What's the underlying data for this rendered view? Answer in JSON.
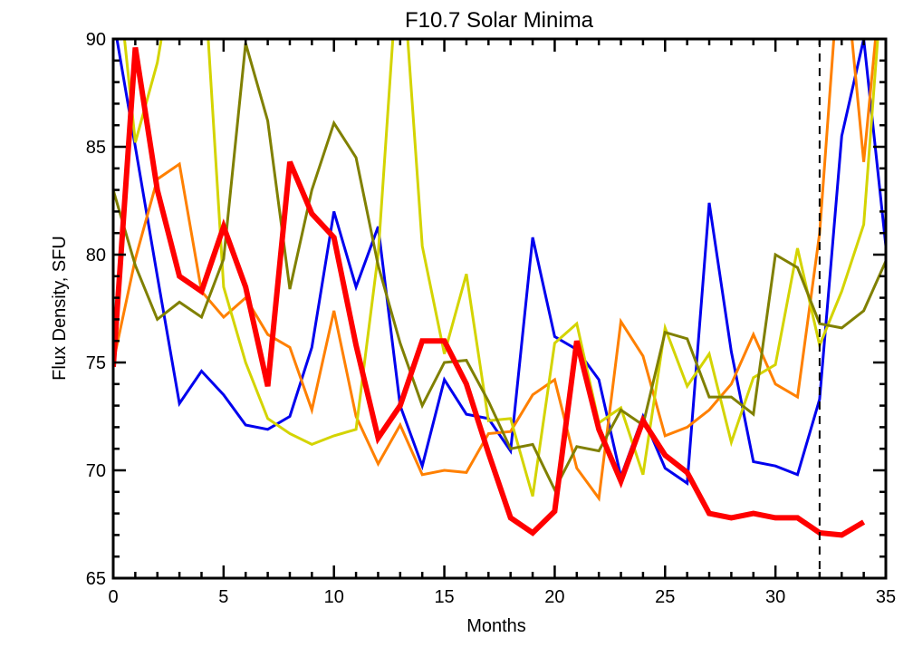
{
  "chart_data": {
    "type": "line",
    "title": "F10.7 Solar Minima",
    "xlabel": "Months",
    "ylabel": "Flux Density, SFU",
    "xlim": [
      0,
      35
    ],
    "ylim": [
      65,
      90
    ],
    "xticks": [
      0,
      5,
      10,
      15,
      20,
      25,
      30,
      35
    ],
    "yticks": [
      65,
      70,
      75,
      80,
      85,
      90
    ],
    "grid": false,
    "vline": {
      "x": 32,
      "style": "dashed",
      "color": "#000000"
    },
    "series": [
      {
        "name": "blue",
        "color": "#0000ee",
        "width": 3,
        "x": [
          0,
          1,
          2,
          3,
          4,
          5,
          6,
          7,
          8,
          9,
          10,
          11,
          12,
          13,
          14,
          15,
          16,
          17,
          18,
          19,
          20,
          21,
          22,
          23,
          24,
          25,
          26,
          27,
          28,
          29,
          30,
          31,
          32,
          33,
          34,
          35
        ],
        "values": [
          91,
          85,
          79,
          73.1,
          74.6,
          73.5,
          72.1,
          71.9,
          72.5,
          75.7,
          82,
          78.5,
          81.3,
          73,
          70.2,
          74.2,
          72.6,
          72.4,
          70.9,
          80.8,
          76.2,
          75.6,
          74.2,
          69.7,
          72.5,
          70.1,
          69.4,
          82.4,
          75.5,
          70.4,
          70.2,
          69.8,
          73.3,
          85.5,
          90,
          80.4
        ]
      },
      {
        "name": "orange",
        "color": "#ff8000",
        "width": 3,
        "x": [
          0,
          1,
          2,
          3,
          4,
          5,
          6,
          7,
          8,
          9,
          10,
          11,
          12,
          13,
          14,
          15,
          16,
          17,
          18,
          19,
          20,
          21,
          22,
          23,
          24,
          25,
          26,
          27,
          28,
          29,
          30,
          31,
          32,
          33,
          34,
          35
        ],
        "values": [
          75,
          79.8,
          83.5,
          84.2,
          78.3,
          77.1,
          78,
          76.3,
          75.7,
          72.8,
          77.4,
          72.5,
          70.3,
          72.1,
          69.8,
          70,
          69.9,
          71.7,
          71.8,
          73.5,
          74.2,
          70.1,
          68.7,
          76.9,
          75.3,
          71.6,
          72,
          72.8,
          74,
          76.3,
          74,
          73.4,
          81,
          95,
          84.3,
          95
        ]
      },
      {
        "name": "yellow",
        "color": "#d4d400",
        "width": 3,
        "x": [
          0,
          1,
          2,
          3,
          4,
          5,
          6,
          7,
          8,
          9,
          10,
          11,
          12,
          13,
          14,
          15,
          16,
          17,
          18,
          19,
          20,
          21,
          22,
          23,
          24,
          25,
          26,
          27,
          28,
          29,
          30,
          31,
          32,
          33,
          34,
          35
        ],
        "values": [
          95,
          85.2,
          88.9,
          95,
          95,
          78.5,
          75,
          72.4,
          71.7,
          71.2,
          71.6,
          71.9,
          80,
          95,
          80.4,
          75.4,
          79.1,
          72.3,
          72.4,
          68.8,
          75.9,
          76.8,
          72.2,
          72.9,
          69.8,
          76.6,
          73.9,
          75.4,
          71.3,
          74.3,
          74.9,
          80.3,
          75.8,
          78.3,
          81.4,
          95
        ]
      },
      {
        "name": "olive",
        "color": "#808000",
        "width": 3,
        "x": [
          0,
          1,
          2,
          3,
          4,
          5,
          6,
          7,
          8,
          9,
          10,
          11,
          12,
          13,
          14,
          15,
          16,
          17,
          18,
          19,
          20,
          21,
          22,
          23,
          24,
          25,
          26,
          27,
          28,
          29,
          30,
          31,
          32,
          33,
          34,
          35
        ],
        "values": [
          83,
          79.5,
          77,
          77.8,
          77.1,
          79.8,
          89.8,
          86.2,
          78.4,
          83,
          86.1,
          84.5,
          79.5,
          75.9,
          73,
          75,
          75.1,
          73.2,
          71,
          71.2,
          69.1,
          71.1,
          70.9,
          72.8,
          72.1,
          76.4,
          76.1,
          73.4,
          73.4,
          72.6,
          80,
          79.4,
          76.8,
          76.6,
          77.4,
          79.7
        ]
      },
      {
        "name": "red",
        "color": "#ff0000",
        "width": 6,
        "x": [
          0,
          1,
          2,
          3,
          4,
          5,
          6,
          7,
          8,
          9,
          10,
          11,
          12,
          13,
          14,
          15,
          16,
          17,
          18,
          19,
          20,
          21,
          22,
          23,
          24,
          25,
          26,
          27,
          28,
          29,
          30,
          31,
          32,
          33,
          34
        ],
        "values": [
          74.8,
          89.6,
          83,
          79,
          78.3,
          81.3,
          78.5,
          73.9,
          84.3,
          81.9,
          80.8,
          75.8,
          71.5,
          73,
          76,
          76,
          74,
          70.8,
          67.8,
          67.1,
          68.1,
          76,
          71.9,
          69.5,
          72.3,
          70.7,
          69.9,
          68,
          67.8,
          68,
          67.8,
          67.8,
          67.1,
          67,
          67.6
        ]
      }
    ]
  }
}
